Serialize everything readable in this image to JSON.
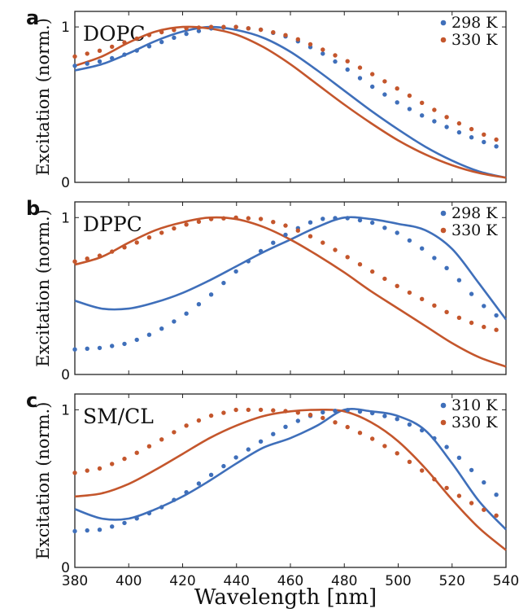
{
  "colors": {
    "blue": "#3f6fba",
    "orange": "#c4562c",
    "frame": "#000000"
  },
  "shared_xlabel": "Wavelength [nm]",
  "chart_data": [
    {
      "type": "line",
      "panel_letter": "a",
      "title": "DOPC",
      "ylabel": "Excitation (norm.)",
      "xlim": [
        380,
        540
      ],
      "ylim": [
        0,
        1.1
      ],
      "xticks": [],
      "yticks": [
        0,
        1
      ],
      "legend_position": "top-right",
      "series": [
        {
          "name": "298 K",
          "color": "blue",
          "style": "solid",
          "x": [
            380,
            390,
            400,
            410,
            420,
            430,
            440,
            450,
            460,
            470,
            480,
            490,
            500,
            510,
            520,
            530,
            540
          ],
          "y": [
            0.72,
            0.76,
            0.83,
            0.91,
            0.97,
            1.0,
            0.98,
            0.93,
            0.84,
            0.72,
            0.59,
            0.46,
            0.34,
            0.23,
            0.14,
            0.07,
            0.03
          ]
        },
        {
          "name": "330 K",
          "color": "orange",
          "style": "solid",
          "x": [
            380,
            390,
            400,
            410,
            420,
            430,
            440,
            450,
            460,
            470,
            480,
            490,
            500,
            510,
            520,
            530,
            540
          ],
          "y": [
            0.75,
            0.81,
            0.9,
            0.97,
            1.0,
            0.99,
            0.95,
            0.87,
            0.76,
            0.63,
            0.5,
            0.38,
            0.27,
            0.18,
            0.11,
            0.06,
            0.03
          ]
        },
        {
          "name": "298 K",
          "color": "blue",
          "style": "dotted",
          "x": [
            380,
            390,
            400,
            410,
            420,
            430,
            440,
            450,
            460,
            470,
            480,
            490,
            500,
            510,
            520,
            530,
            540
          ],
          "y": [
            0.75,
            0.78,
            0.83,
            0.89,
            0.95,
            0.99,
            1.0,
            0.98,
            0.93,
            0.85,
            0.74,
            0.62,
            0.51,
            0.42,
            0.34,
            0.27,
            0.21
          ]
        },
        {
          "name": "330 K",
          "color": "orange",
          "style": "dotted",
          "x": [
            380,
            390,
            400,
            410,
            420,
            430,
            440,
            450,
            460,
            470,
            480,
            490,
            500,
            510,
            520,
            530,
            540
          ],
          "y": [
            0.81,
            0.85,
            0.91,
            0.96,
            0.99,
            1.0,
            1.0,
            0.98,
            0.94,
            0.87,
            0.79,
            0.7,
            0.6,
            0.5,
            0.4,
            0.32,
            0.25
          ]
        }
      ]
    },
    {
      "type": "line",
      "panel_letter": "b",
      "title": "DPPC",
      "ylabel": "Excitation (norm.)",
      "xlim": [
        380,
        540
      ],
      "ylim": [
        0,
        1.1
      ],
      "xticks": [],
      "yticks": [
        0,
        1
      ],
      "legend_position": "top-right",
      "series": [
        {
          "name": "298 K",
          "color": "blue",
          "style": "solid",
          "x": [
            380,
            390,
            400,
            410,
            420,
            430,
            440,
            450,
            460,
            470,
            480,
            490,
            500,
            510,
            520,
            530,
            540
          ],
          "y": [
            0.47,
            0.42,
            0.42,
            0.46,
            0.52,
            0.6,
            0.69,
            0.78,
            0.86,
            0.94,
            1.0,
            0.99,
            0.96,
            0.92,
            0.8,
            0.58,
            0.35
          ]
        },
        {
          "name": "330 K",
          "color": "orange",
          "style": "solid",
          "x": [
            380,
            390,
            400,
            410,
            420,
            430,
            440,
            450,
            460,
            470,
            480,
            490,
            500,
            510,
            520,
            530,
            540
          ],
          "y": [
            0.7,
            0.75,
            0.84,
            0.92,
            0.97,
            1.0,
            0.99,
            0.94,
            0.86,
            0.76,
            0.65,
            0.53,
            0.42,
            0.31,
            0.2,
            0.11,
            0.05
          ]
        },
        {
          "name": "298 K",
          "color": "blue",
          "style": "dotted",
          "x": [
            380,
            390,
            400,
            410,
            420,
            430,
            440,
            450,
            460,
            470,
            480,
            490,
            500,
            510,
            520,
            530,
            540
          ],
          "y": [
            0.16,
            0.17,
            0.2,
            0.27,
            0.37,
            0.5,
            0.66,
            0.8,
            0.91,
            0.99,
            1.0,
            0.97,
            0.9,
            0.79,
            0.65,
            0.46,
            0.33
          ]
        },
        {
          "name": "330 K",
          "color": "orange",
          "style": "dotted",
          "x": [
            380,
            390,
            400,
            410,
            420,
            430,
            440,
            450,
            460,
            470,
            480,
            490,
            500,
            510,
            520,
            530,
            540
          ],
          "y": [
            0.72,
            0.76,
            0.82,
            0.89,
            0.95,
            0.99,
            1.0,
            0.99,
            0.94,
            0.86,
            0.76,
            0.66,
            0.56,
            0.47,
            0.38,
            0.31,
            0.27
          ]
        }
      ]
    },
    {
      "type": "line",
      "panel_letter": "c",
      "title": "SM/CL",
      "ylabel": "Excitation (norm.)",
      "xlabel": "Wavelength [nm]",
      "xlim": [
        380,
        540
      ],
      "ylim": [
        0,
        1.1
      ],
      "xticks": [
        380,
        400,
        420,
        440,
        460,
        480,
        500,
        520,
        540
      ],
      "yticks": [
        0,
        1
      ],
      "legend_position": "top-right",
      "series": [
        {
          "name": "310 K",
          "color": "blue",
          "style": "solid",
          "x": [
            380,
            390,
            400,
            410,
            420,
            430,
            440,
            450,
            460,
            470,
            480,
            490,
            500,
            510,
            520,
            530,
            540
          ],
          "y": [
            0.37,
            0.31,
            0.31,
            0.37,
            0.45,
            0.55,
            0.66,
            0.76,
            0.82,
            0.9,
            1.0,
            0.99,
            0.96,
            0.87,
            0.66,
            0.42,
            0.24
          ]
        },
        {
          "name": "330 K",
          "color": "orange",
          "style": "solid",
          "x": [
            380,
            390,
            400,
            410,
            420,
            430,
            440,
            450,
            460,
            470,
            480,
            490,
            500,
            510,
            520,
            530,
            540
          ],
          "y": [
            0.45,
            0.47,
            0.53,
            0.62,
            0.72,
            0.82,
            0.9,
            0.96,
            0.99,
            1.0,
            0.99,
            0.92,
            0.8,
            0.63,
            0.43,
            0.25,
            0.11
          ]
        },
        {
          "name": "310 K",
          "color": "blue",
          "style": "dotted",
          "x": [
            380,
            390,
            400,
            410,
            420,
            430,
            440,
            450,
            460,
            470,
            480,
            490,
            500,
            510,
            520,
            530,
            540
          ],
          "y": [
            0.23,
            0.24,
            0.29,
            0.36,
            0.46,
            0.58,
            0.7,
            0.81,
            0.91,
            0.98,
            1.0,
            0.98,
            0.94,
            0.86,
            0.74,
            0.57,
            0.4
          ]
        },
        {
          "name": "330 K",
          "color": "orange",
          "style": "dotted",
          "x": [
            380,
            390,
            400,
            410,
            420,
            430,
            440,
            450,
            460,
            470,
            480,
            490,
            500,
            510,
            520,
            530,
            540
          ],
          "y": [
            0.6,
            0.63,
            0.7,
            0.79,
            0.89,
            0.96,
            1.0,
            1.0,
            0.99,
            0.96,
            0.9,
            0.82,
            0.72,
            0.6,
            0.48,
            0.38,
            0.3
          ]
        }
      ]
    }
  ]
}
